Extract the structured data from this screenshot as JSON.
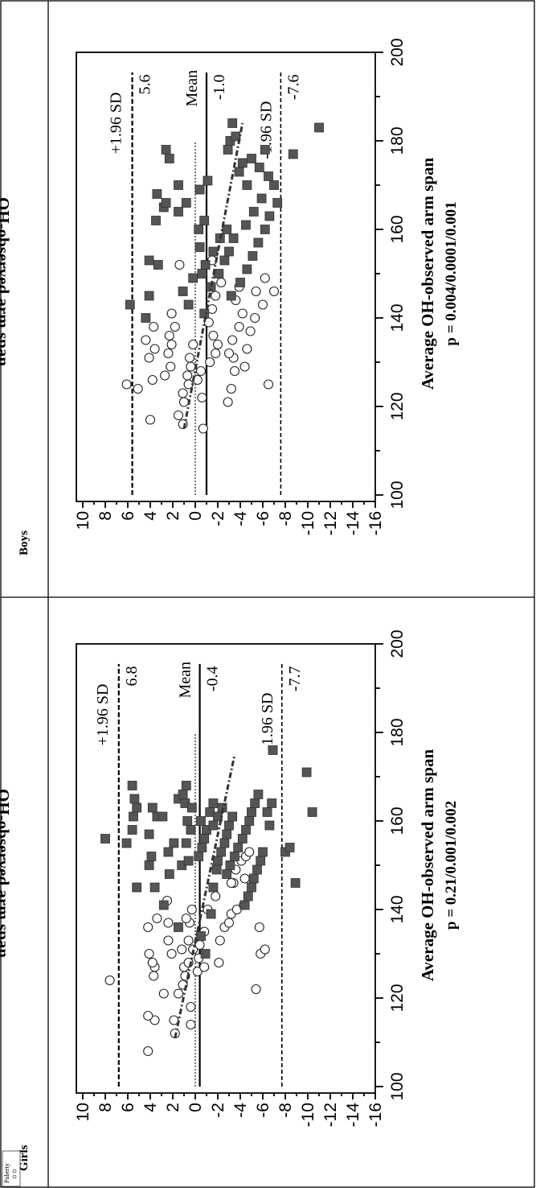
{
  "groups": [
    "Girls",
    "Boys"
  ],
  "legend": {
    "title": "Puberty"
  },
  "chart_data": [
    {
      "type": "scatter",
      "panel": "Girls",
      "xlabel": "Average OH-observed arm span",
      "ylabel": "OH-observed arm span",
      "subtitle": "p = 0.21/0.001/0.002",
      "xlim": [
        100,
        200
      ],
      "ylim": [
        -16,
        10
      ],
      "xticks": [
        100,
        120,
        140,
        160,
        180,
        200
      ],
      "yticks": [
        10,
        8,
        6,
        4,
        2,
        0,
        -2,
        -4,
        -6,
        -8,
        -10,
        -12,
        -14,
        -16
      ],
      "lines": {
        "upper": {
          "value": 6.8,
          "label": "+1.96 SD",
          "value_label": "6.8"
        },
        "mean": {
          "value": -0.4,
          "label": "Mean",
          "value_label": "-0.4"
        },
        "lower": {
          "value": -7.7,
          "label": "-1.96 SD",
          "value_label": "-7.7"
        }
      },
      "zero_line": 0,
      "trend": {
        "x": [
          111,
          175
        ],
        "y": [
          1.8,
          -3.5
        ]
      },
      "series": [
        {
          "marker": "open-circle",
          "points": [
            [
              124,
              7.6
            ],
            [
              108,
              4.2
            ],
            [
              115,
              3.6
            ],
            [
              116,
              4.2
            ],
            [
              125,
              3.7
            ],
            [
              127,
              3.6
            ],
            [
              128,
              3.8
            ],
            [
              130,
              4.1
            ],
            [
              138,
              3.4
            ],
            [
              136,
              4.2
            ],
            [
              121,
              2.8
            ],
            [
              130,
              2.1
            ],
            [
              133,
              2.4
            ],
            [
              137,
              2.4
            ],
            [
              142,
              2.5
            ],
            [
              112,
              1.8
            ],
            [
              115,
              1.9
            ],
            [
              114,
              0.4
            ],
            [
              118,
              0.4
            ],
            [
              121,
              1.5
            ],
            [
              123,
              1.1
            ],
            [
              125,
              0.9
            ],
            [
              127,
              1.0
            ],
            [
              128,
              0.6
            ],
            [
              131,
              1.2
            ],
            [
              131,
              0.2
            ],
            [
              133,
              0.6
            ],
            [
              137,
              0.5
            ],
            [
              138,
              0.8
            ],
            [
              140,
              0.3
            ],
            [
              126,
              -0.2
            ],
            [
              127,
              -0.8
            ],
            [
              129,
              -0.3
            ],
            [
              132,
              -0.4
            ],
            [
              135,
              -0.8
            ],
            [
              140,
              -1.1
            ],
            [
              143,
              -1.8
            ],
            [
              128,
              -2.1
            ],
            [
              133,
              -2.2
            ],
            [
              136,
              -2.6
            ],
            [
              137,
              -3.0
            ],
            [
              139,
              -3.2
            ],
            [
              140,
              -3.7
            ],
            [
              146,
              -3.4
            ],
            [
              147,
              -4.4
            ],
            [
              151,
              -4.1
            ],
            [
              152,
              -4.5
            ],
            [
              153,
              -4.8
            ],
            [
              122,
              -5.4
            ],
            [
              130,
              -5.8
            ],
            [
              136,
              -5.7
            ],
            [
              131,
              -6.2
            ],
            [
              146,
              -3.2
            ],
            [
              149,
              -3.6
            ],
            [
              141,
              -4.3
            ]
          ]
        },
        {
          "marker": "filled-square",
          "points": [
            [
              156,
              8.0
            ],
            [
              155,
              6.1
            ],
            [
              158,
              5.6
            ],
            [
              161,
              5.5
            ],
            [
              163,
              5.2
            ],
            [
              165,
              5.4
            ],
            [
              168,
              5.6
            ],
            [
              145,
              5.2
            ],
            [
              145,
              3.6
            ],
            [
              152,
              3.9
            ],
            [
              150,
              4.1
            ],
            [
              157,
              4.1
            ],
            [
              161,
              3.4
            ],
            [
              163,
              3.8
            ],
            [
              161,
              2.9
            ],
            [
              148,
              2.3
            ],
            [
              153,
              2.4
            ],
            [
              155,
              1.9
            ],
            [
              165,
              1.5
            ],
            [
              164,
              0.9
            ],
            [
              166,
              1.1
            ],
            [
              168,
              0.8
            ],
            [
              136,
              1.5
            ],
            [
              141,
              2.8
            ],
            [
              150,
              1.2
            ],
            [
              151,
              0.6
            ],
            [
              155,
              0.8
            ],
            [
              158,
              0.4
            ],
            [
              160,
              0.7
            ],
            [
              163,
              0.3
            ],
            [
              152,
              -0.3
            ],
            [
              154,
              -0.6
            ],
            [
              156,
              -0.8
            ],
            [
              158,
              -1.0
            ],
            [
              160,
              -0.5
            ],
            [
              162,
              -1.3
            ],
            [
              164,
              -1.6
            ],
            [
              130,
              -0.9
            ],
            [
              134,
              -0.5
            ],
            [
              139,
              -1.4
            ],
            [
              145,
              -1.6
            ],
            [
              149,
              -1.9
            ],
            [
              151,
              -2.0
            ],
            [
              153,
              -2.3
            ],
            [
              155,
              -2.6
            ],
            [
              157,
              -2.8
            ],
            [
              159,
              -3.0
            ],
            [
              161,
              -3.3
            ],
            [
              148,
              -2.8
            ],
            [
              150,
              -3.1
            ],
            [
              152,
              -3.5
            ],
            [
              154,
              -3.8
            ],
            [
              156,
              -4.2
            ],
            [
              158,
              -4.5
            ],
            [
              160,
              -4.8
            ],
            [
              162,
              -5.0
            ],
            [
              164,
              -5.3
            ],
            [
              166,
              -5.6
            ],
            [
              141,
              -4.4
            ],
            [
              143,
              -4.7
            ],
            [
              145,
              -5.0
            ],
            [
              147,
              -5.2
            ],
            [
              149,
              -5.5
            ],
            [
              151,
              -5.8
            ],
            [
              153,
              -6.0
            ],
            [
              176,
              -6.9
            ],
            [
              162,
              -6.4
            ],
            [
              164,
              -6.8
            ],
            [
              146,
              -8.9
            ],
            [
              153,
              -8.0
            ],
            [
              154,
              -8.4
            ],
            [
              171,
              -9.9
            ],
            [
              162,
              -10.4
            ],
            [
              159,
              -6.6
            ],
            [
              161,
              -2.0
            ],
            [
              163,
              -2.4
            ],
            [
              159,
              -1.6
            ]
          ]
        }
      ]
    },
    {
      "type": "scatter",
      "panel": "Boys",
      "xlabel": "Average OH-observed arm span",
      "ylabel": "OH-observed arm span",
      "subtitle": "p = 0.004/0.0001/0.001",
      "xlim": [
        100,
        200
      ],
      "ylim": [
        -16,
        10
      ],
      "xticks": [
        100,
        120,
        140,
        160,
        180,
        200
      ],
      "yticks": [
        10,
        8,
        6,
        4,
        2,
        0,
        -2,
        -4,
        -6,
        -8,
        -10,
        -12,
        -14,
        -16
      ],
      "lines": {
        "upper": {
          "value": 5.6,
          "label": "+1.96 SD",
          "value_label": "5.6"
        },
        "mean": {
          "value": -1.0,
          "label": "Mean",
          "value_label": "-1.0"
        },
        "lower": {
          "value": -7.6,
          "label": "-1.96 SD",
          "value_label": "-7.6"
        }
      },
      "zero_line": 0,
      "trend": {
        "x": [
          115,
          184
        ],
        "y": [
          1.0,
          -4.2
        ]
      },
      "series": [
        {
          "marker": "open-circle",
          "points": [
            [
              125,
              6.1
            ],
            [
              124,
              5.1
            ],
            [
              117,
              4.0
            ],
            [
              126,
              3.8
            ],
            [
              131,
              4.1
            ],
            [
              133,
              3.6
            ],
            [
              135,
              4.4
            ],
            [
              138,
              3.7
            ],
            [
              127,
              2.7
            ],
            [
              129,
              2.2
            ],
            [
              132,
              2.4
            ],
            [
              134,
              2.1
            ],
            [
              136,
              2.3
            ],
            [
              138,
              1.8
            ],
            [
              141,
              2.1
            ],
            [
              116,
              1.1
            ],
            [
              118,
              1.5
            ],
            [
              121,
              1.0
            ],
            [
              123,
              1.1
            ],
            [
              125,
              0.6
            ],
            [
              127,
              0.7
            ],
            [
              129,
              0.4
            ],
            [
              131,
              0.5
            ],
            [
              134,
              0.2
            ],
            [
              152,
              1.4
            ],
            [
              115,
              -0.7
            ],
            [
              122,
              -0.6
            ],
            [
              126,
              -0.2
            ],
            [
              128,
              -0.5
            ],
            [
              130,
              -1.3
            ],
            [
              132,
              -1.8
            ],
            [
              134,
              -2.0
            ],
            [
              136,
              -1.6
            ],
            [
              139,
              -1.2
            ],
            [
              142,
              -1.5
            ],
            [
              145,
              -1.8
            ],
            [
              148,
              -2.3
            ],
            [
              150,
              -2.0
            ],
            [
              153,
              -1.5
            ],
            [
              121,
              -2.9
            ],
            [
              124,
              -3.2
            ],
            [
              128,
              -3.5
            ],
            [
              131,
              -3.4
            ],
            [
              135,
              -3.3
            ],
            [
              138,
              -3.9
            ],
            [
              141,
              -4.2
            ],
            [
              144,
              -3.6
            ],
            [
              147,
              -3.9
            ],
            [
              129,
              -4.4
            ],
            [
              133,
              -4.6
            ],
            [
              137,
              -4.9
            ],
            [
              140,
              -5.3
            ],
            [
              143,
              -6.0
            ],
            [
              146,
              -5.4
            ],
            [
              149,
              -6.2
            ],
            [
              125,
              -6.5
            ],
            [
              146,
              -7.0
            ],
            [
              132,
              -3.0
            ]
          ]
        },
        {
          "marker": "filled-square",
          "points": [
            [
              143,
              5.8
            ],
            [
              140,
              4.4
            ],
            [
              145,
              4.1
            ],
            [
              152,
              3.3
            ],
            [
              153,
              4.1
            ],
            [
              162,
              3.5
            ],
            [
              165,
              2.8
            ],
            [
              168,
              3.4
            ],
            [
              166,
              2.6
            ],
            [
              178,
              2.6
            ],
            [
              164,
              1.5
            ],
            [
              166,
              0.8
            ],
            [
              170,
              1.5
            ],
            [
              176,
              2.3
            ],
            [
              150,
              -0.6
            ],
            [
              156,
              -0.4
            ],
            [
              160,
              -0.3
            ],
            [
              162,
              -0.8
            ],
            [
              169,
              -0.4
            ],
            [
              171,
              -1.1
            ],
            [
              178,
              -2.9
            ],
            [
              180,
              -3.1
            ],
            [
              181,
              -3.6
            ],
            [
              184,
              -3.3
            ],
            [
              175,
              -4.2
            ],
            [
              176,
              -5.0
            ],
            [
              178,
              -6.2
            ],
            [
              174,
              -5.7
            ],
            [
              172,
              -6.5
            ],
            [
              170,
              -7.0
            ],
            [
              177,
              -8.7
            ],
            [
              183,
              -11.0
            ],
            [
              147,
              -1.4
            ],
            [
              150,
              -2.1
            ],
            [
              153,
              -2.6
            ],
            [
              155,
              -3.0
            ],
            [
              158,
              -3.4
            ],
            [
              160,
              -2.8
            ],
            [
              145,
              -3.2
            ],
            [
              148,
              -4.0
            ],
            [
              151,
              -4.6
            ],
            [
              154,
              -5.1
            ],
            [
              157,
              -5.6
            ],
            [
              160,
              -6.2
            ],
            [
              163,
              -6.6
            ],
            [
              166,
              -7.3
            ],
            [
              141,
              -0.8
            ],
            [
              143,
              0.6
            ],
            [
              146,
              1.1
            ],
            [
              149,
              0.2
            ],
            [
              152,
              -0.9
            ],
            [
              155,
              -1.6
            ],
            [
              158,
              -2.2
            ],
            [
              161,
              -4.5
            ],
            [
              164,
              -5.2
            ],
            [
              167,
              -5.9
            ],
            [
              170,
              -4.6
            ],
            [
              173,
              -3.9
            ]
          ]
        }
      ]
    }
  ]
}
